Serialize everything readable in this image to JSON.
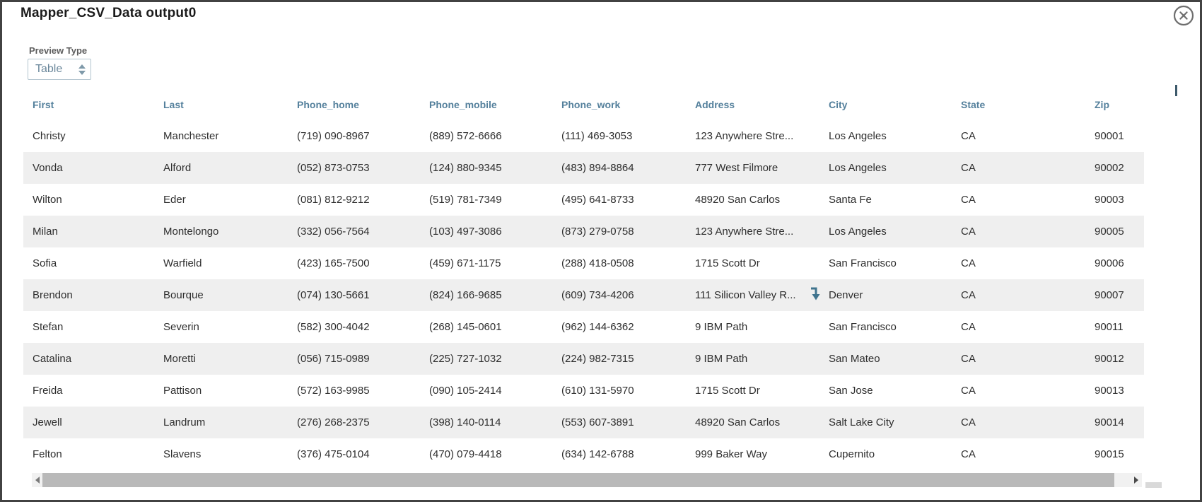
{
  "modal": {
    "title": "Mapper_CSV_Data output0"
  },
  "preview": {
    "label": "Preview Type",
    "selected_option": "Table"
  },
  "table": {
    "columns": [
      "First",
      "Last",
      "Phone_home",
      "Phone_mobile",
      "Phone_work",
      "Address",
      "City",
      "State",
      "Zip"
    ],
    "rows": [
      [
        "Christy",
        "Manchester",
        "(719) 090-8967",
        "(889) 572-6666",
        "(111) 469-3053",
        "123 Anywhere Stre...",
        "Los Angeles",
        "CA",
        "90001"
      ],
      [
        "Vonda",
        "Alford",
        "(052) 873-0753",
        "(124) 880-9345",
        "(483) 894-8864",
        "777 West Filmore",
        "Los Angeles",
        "CA",
        "90002"
      ],
      [
        "Wilton",
        "Eder",
        "(081) 812-9212",
        "(519) 781-7349",
        "(495) 641-8733",
        "48920 San Carlos",
        "Santa Fe",
        "CA",
        "90003"
      ],
      [
        "Milan",
        "Montelongo",
        "(332) 056-7564",
        "(103) 497-3086",
        "(873) 279-0758",
        "123 Anywhere Stre...",
        "Los Angeles",
        "CA",
        "90005"
      ],
      [
        "Sofia",
        "Warfield",
        "(423) 165-7500",
        "(459) 671-1175",
        "(288) 418-0508",
        "1715 Scott Dr",
        "San Francisco",
        "CA",
        "90006"
      ],
      [
        "Brendon",
        "Bourque",
        "(074) 130-5661",
        "(824) 166-9685",
        "(609) 734-4206",
        "111 Silicon Valley R...",
        "Denver",
        "CA",
        "90007"
      ],
      [
        "Stefan",
        "Severin",
        "(582) 300-4042",
        "(268) 145-0601",
        "(962) 144-6362",
        "9 IBM Path",
        "San Francisco",
        "CA",
        "90011"
      ],
      [
        "Catalina",
        "Moretti",
        "(056) 715-0989",
        "(225) 727-1032",
        "(224) 982-7315",
        "9 IBM Path",
        "San Mateo",
        "CA",
        "90012"
      ],
      [
        "Freida",
        "Pattison",
        "(572) 163-9985",
        "(090) 105-2414",
        "(610) 131-5970",
        "1715 Scott Dr",
        "San Jose",
        "CA",
        "90013"
      ],
      [
        "Jewell",
        "Landrum",
        "(276) 268-2375",
        "(398) 140-0114",
        "(553) 607-3891",
        "48920 San Carlos",
        "Salt Lake City",
        "CA",
        "90014"
      ],
      [
        "Felton",
        "Slavens",
        "(376) 475-0104",
        "(470) 079-4418",
        "(634) 142-6788",
        "999 Baker Way",
        "Cupernito",
        "CA",
        "90015"
      ]
    ]
  },
  "icons": {
    "close": "circle-x-icon",
    "select_spinner": "up-down-arrows-icon",
    "scrollbar_left": "triangle-left-icon",
    "scrollbar_right": "triangle-right-icon",
    "row_cursor": "down-arrow-icon"
  },
  "colors": {
    "column_header_text": "#54809c",
    "body_text": "#2e2e2e",
    "row_stripe": "#efefef",
    "select_text": "#69869a",
    "cursor_arrow": "#40748e",
    "scrollbar_thumb": "#b9b9b9",
    "modal_border": "#424242"
  }
}
